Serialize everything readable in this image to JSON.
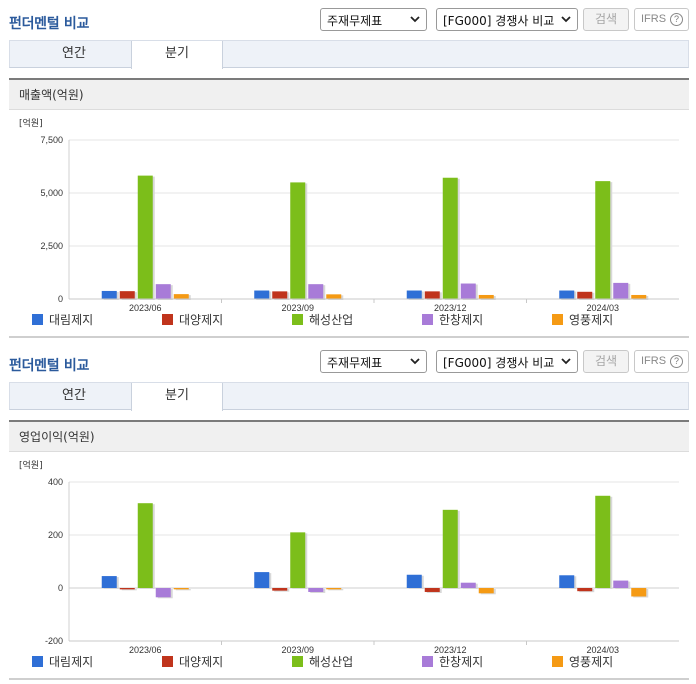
{
  "sections": [
    {
      "title": "펀더멘털 비교",
      "select_statement": "주재무제표",
      "select_compare": "[FG000] 경쟁사 비교",
      "search_label": "검색",
      "ifrs_label": "IFRS",
      "ifrs_help": "?",
      "tabs": [
        "연간",
        "분기"
      ],
      "active_tab": "분기",
      "chart_title": "매출액(억원)"
    },
    {
      "title": "펀더멘털 비교",
      "select_statement": "주재무제표",
      "select_compare": "[FG000] 경쟁사 비교",
      "search_label": "검색",
      "ifrs_label": "IFRS",
      "ifrs_help": "?",
      "tabs": [
        "연간",
        "분기"
      ],
      "active_tab": "분기",
      "chart_title": "영업이익(억원)"
    }
  ],
  "legend": [
    {
      "name": "대림제지",
      "color": "#2f6fd6"
    },
    {
      "name": "대양제지",
      "color": "#c0341c"
    },
    {
      "name": "해성산업",
      "color": "#7cbe1a"
    },
    {
      "name": "한창제지",
      "color": "#a87bd8"
    },
    {
      "name": "영풍제지",
      "color": "#f59a14"
    }
  ],
  "chart_data": [
    {
      "type": "bar",
      "unit_label": "[억원]",
      "categories": [
        "2023/06",
        "2023/09",
        "2023/12",
        "2024/03"
      ],
      "ylim": [
        0,
        7500
      ],
      "yticks": [
        "0",
        "2,500",
        "5,000",
        "7,500"
      ],
      "ytick_values": [
        0,
        2500,
        5000,
        7500
      ],
      "series": [
        {
          "name": "대림제지",
          "values": [
            380,
            400,
            400,
            400
          ]
        },
        {
          "name": "대양제지",
          "values": [
            370,
            360,
            360,
            340
          ]
        },
        {
          "name": "해성산업",
          "values": [
            5820,
            5500,
            5720,
            5560
          ]
        },
        {
          "name": "한창제지",
          "values": [
            700,
            700,
            730,
            760
          ]
        },
        {
          "name": "영풍제지",
          "values": [
            230,
            220,
            190,
            190
          ]
        }
      ]
    },
    {
      "type": "bar",
      "unit_label": "[억원]",
      "categories": [
        "2023/06",
        "2023/09",
        "2023/12",
        "2024/03"
      ],
      "ylim": [
        -200,
        400
      ],
      "yticks": [
        "-200",
        "0",
        "200",
        "400"
      ],
      "ytick_values": [
        -200,
        0,
        200,
        400
      ],
      "series": [
        {
          "name": "대림제지",
          "values": [
            45,
            60,
            50,
            48
          ]
        },
        {
          "name": "대양제지",
          "values": [
            -5,
            -10,
            -15,
            -12
          ]
        },
        {
          "name": "해성산업",
          "values": [
            320,
            210,
            295,
            348
          ]
        },
        {
          "name": "한창제지",
          "values": [
            -35,
            -15,
            20,
            28
          ]
        },
        {
          "name": "영풍제지",
          "values": [
            -5,
            -5,
            -20,
            -32
          ]
        }
      ]
    }
  ]
}
